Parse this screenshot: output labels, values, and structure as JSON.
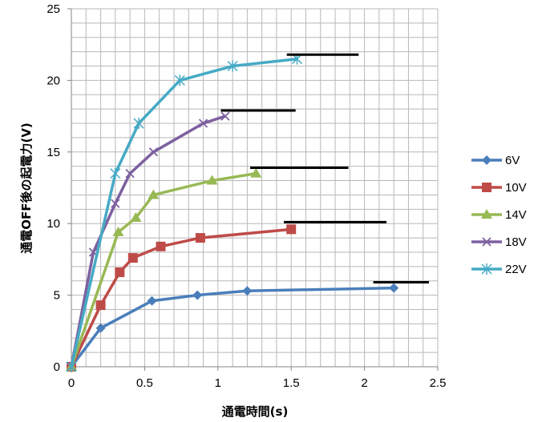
{
  "chart_data": {
    "type": "line",
    "xlabel": "通電時間(s)",
    "ylabel": "通電OFF後の起電力(V)",
    "xlim": [
      0,
      2.5
    ],
    "ylim": [
      0,
      25
    ],
    "x_ticks": [
      "0",
      "0.5",
      "1",
      "1.5",
      "2",
      "2.5"
    ],
    "y_ticks": [
      "0",
      "5",
      "10",
      "15",
      "20",
      "25"
    ],
    "grid": true,
    "legend_position": "right",
    "series": [
      {
        "name": "6V",
        "color": "#4a7ebb",
        "marker": "diamond",
        "x": [
          0,
          0.2,
          0.55,
          0.86,
          1.2,
          2.2
        ],
        "y": [
          0,
          2.7,
          4.6,
          5.0,
          5.3,
          5.5
        ]
      },
      {
        "name": "10V",
        "color": "#be4b48",
        "marker": "square",
        "x": [
          0,
          0.2,
          0.33,
          0.42,
          0.61,
          0.88,
          1.5
        ],
        "y": [
          0,
          4.3,
          6.6,
          7.6,
          8.4,
          9.0,
          9.6
        ]
      },
      {
        "name": "14V",
        "color": "#98b954",
        "marker": "triangle",
        "x": [
          0,
          0.32,
          0.44,
          0.56,
          0.96,
          1.26
        ],
        "y": [
          0,
          9.4,
          10.4,
          12.0,
          13.0,
          13.5
        ]
      },
      {
        "name": "18V",
        "color": "#7d60a0",
        "marker": "x",
        "x": [
          0,
          0.15,
          0.3,
          0.4,
          0.56,
          0.9,
          1.05
        ],
        "y": [
          0,
          8.0,
          11.4,
          13.5,
          15.0,
          17.0,
          17.5
        ]
      },
      {
        "name": "22V",
        "color": "#46aac5",
        "marker": "asterisk",
        "x": [
          0,
          0.3,
          0.46,
          0.74,
          1.1,
          1.54
        ],
        "y": [
          0,
          13.5,
          17.0,
          20.0,
          21.0,
          21.5
        ]
      }
    ],
    "reference_lines": [
      {
        "x": [
          2.06,
          2.44
        ],
        "y": 5.9
      },
      {
        "x": [
          1.45,
          2.15
        ],
        "y": 10.1
      },
      {
        "x": [
          1.22,
          1.89
        ],
        "y": 13.9
      },
      {
        "x": [
          1.02,
          1.53
        ],
        "y": 17.9
      },
      {
        "x": [
          1.47,
          1.96
        ],
        "y": 21.8
      }
    ]
  }
}
